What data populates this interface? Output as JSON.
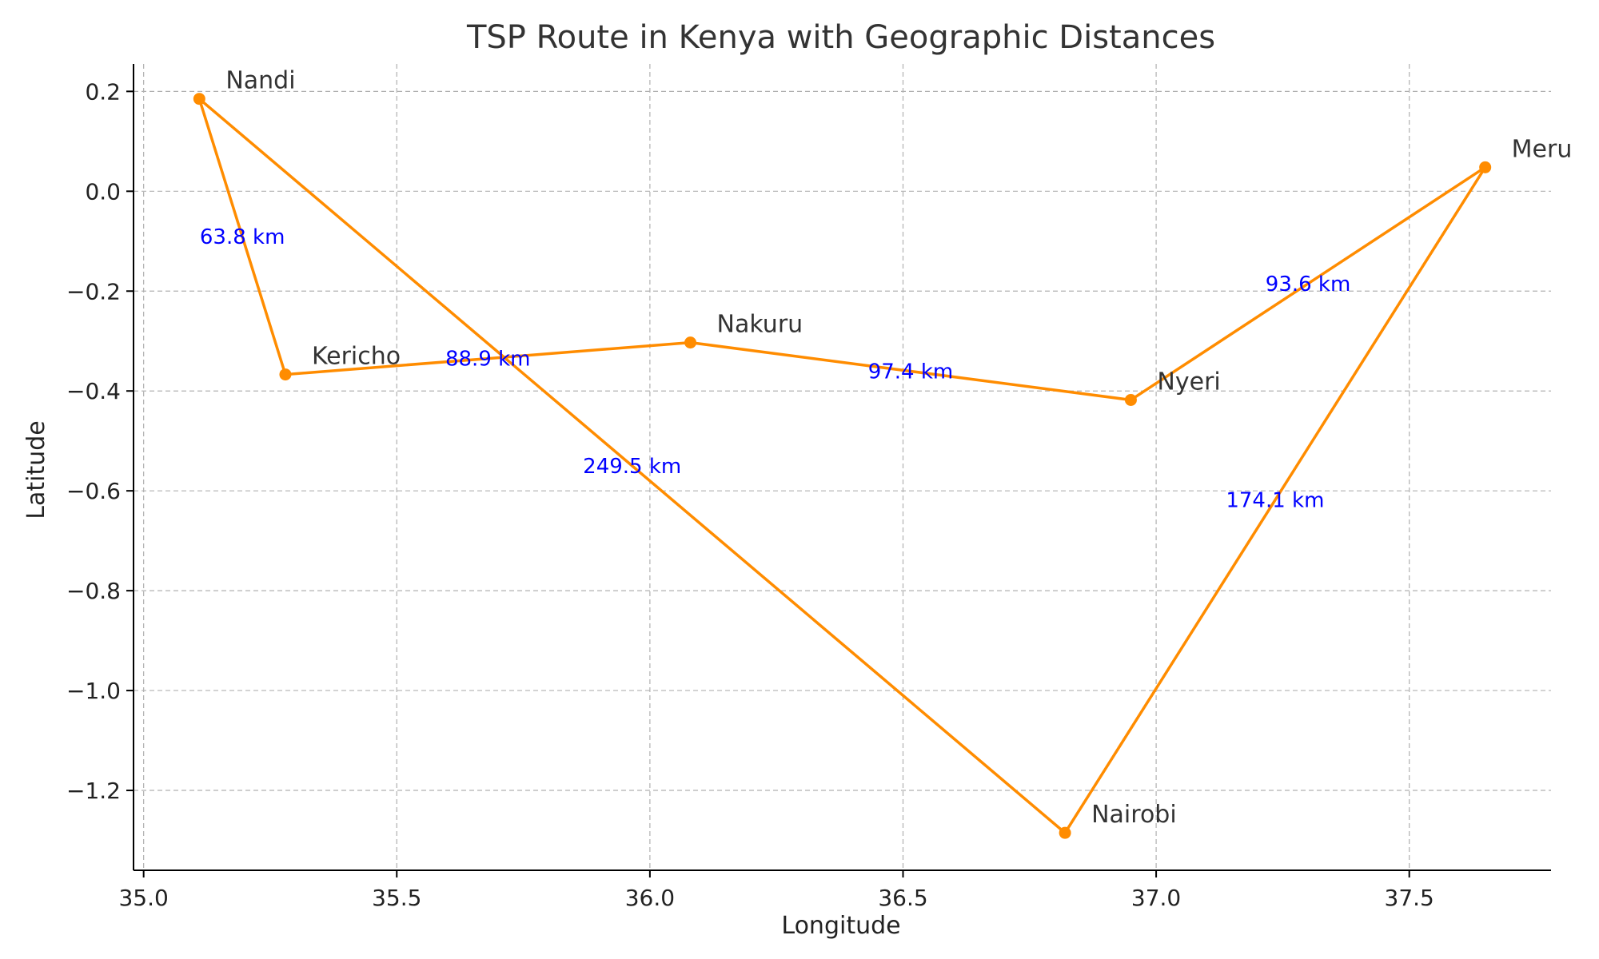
{
  "chart_data": {
    "type": "line",
    "title": "TSP Route in Kenya with Geographic Distances",
    "xlabel": "Longitude",
    "ylabel": "Latitude",
    "xlim": [
      34.98,
      37.78
    ],
    "ylim": [
      -1.36,
      0.255
    ],
    "xticks": [
      35.0,
      35.5,
      36.0,
      36.5,
      37.0,
      37.5
    ],
    "xtick_labels": [
      "35.0",
      "35.5",
      "36.0",
      "36.5",
      "37.0",
      "37.5"
    ],
    "yticks": [
      0.2,
      0.0,
      -0.2,
      -0.4,
      -0.6,
      -0.8,
      -1.0,
      -1.2
    ],
    "ytick_labels": [
      "0.2",
      "0.0",
      "−0.2",
      "−0.4",
      "−0.6",
      "−0.8",
      "−1.0",
      "−1.2"
    ],
    "grid": true,
    "line_color": "#ff8c00",
    "distance_color": "#0000ff",
    "cities": [
      {
        "name": "Nandi",
        "x": 35.11,
        "y": 0.185
      },
      {
        "name": "Kericho",
        "x": 35.28,
        "y": -0.367
      },
      {
        "name": "Nakuru",
        "x": 36.08,
        "y": -0.303
      },
      {
        "name": "Nyeri",
        "x": 36.95,
        "y": -0.418
      },
      {
        "name": "Meru",
        "x": 37.65,
        "y": 0.048
      },
      {
        "name": "Nairobi",
        "x": 36.82,
        "y": -1.285
      }
    ],
    "route": [
      "Nandi",
      "Kericho",
      "Nakuru",
      "Nyeri",
      "Meru",
      "Nairobi",
      "Nandi"
    ],
    "distances": [
      {
        "from": "Nandi",
        "to": "Kericho",
        "label": "63.8 km"
      },
      {
        "from": "Kericho",
        "to": "Nakuru",
        "label": "88.9 km"
      },
      {
        "from": "Nakuru",
        "to": "Nyeri",
        "label": "97.4 km"
      },
      {
        "from": "Nyeri",
        "to": "Meru",
        "label": "93.6 km"
      },
      {
        "from": "Meru",
        "to": "Nairobi",
        "label": "174.1 km"
      },
      {
        "from": "Nairobi",
        "to": "Nandi",
        "label": "249.5 km"
      }
    ]
  }
}
